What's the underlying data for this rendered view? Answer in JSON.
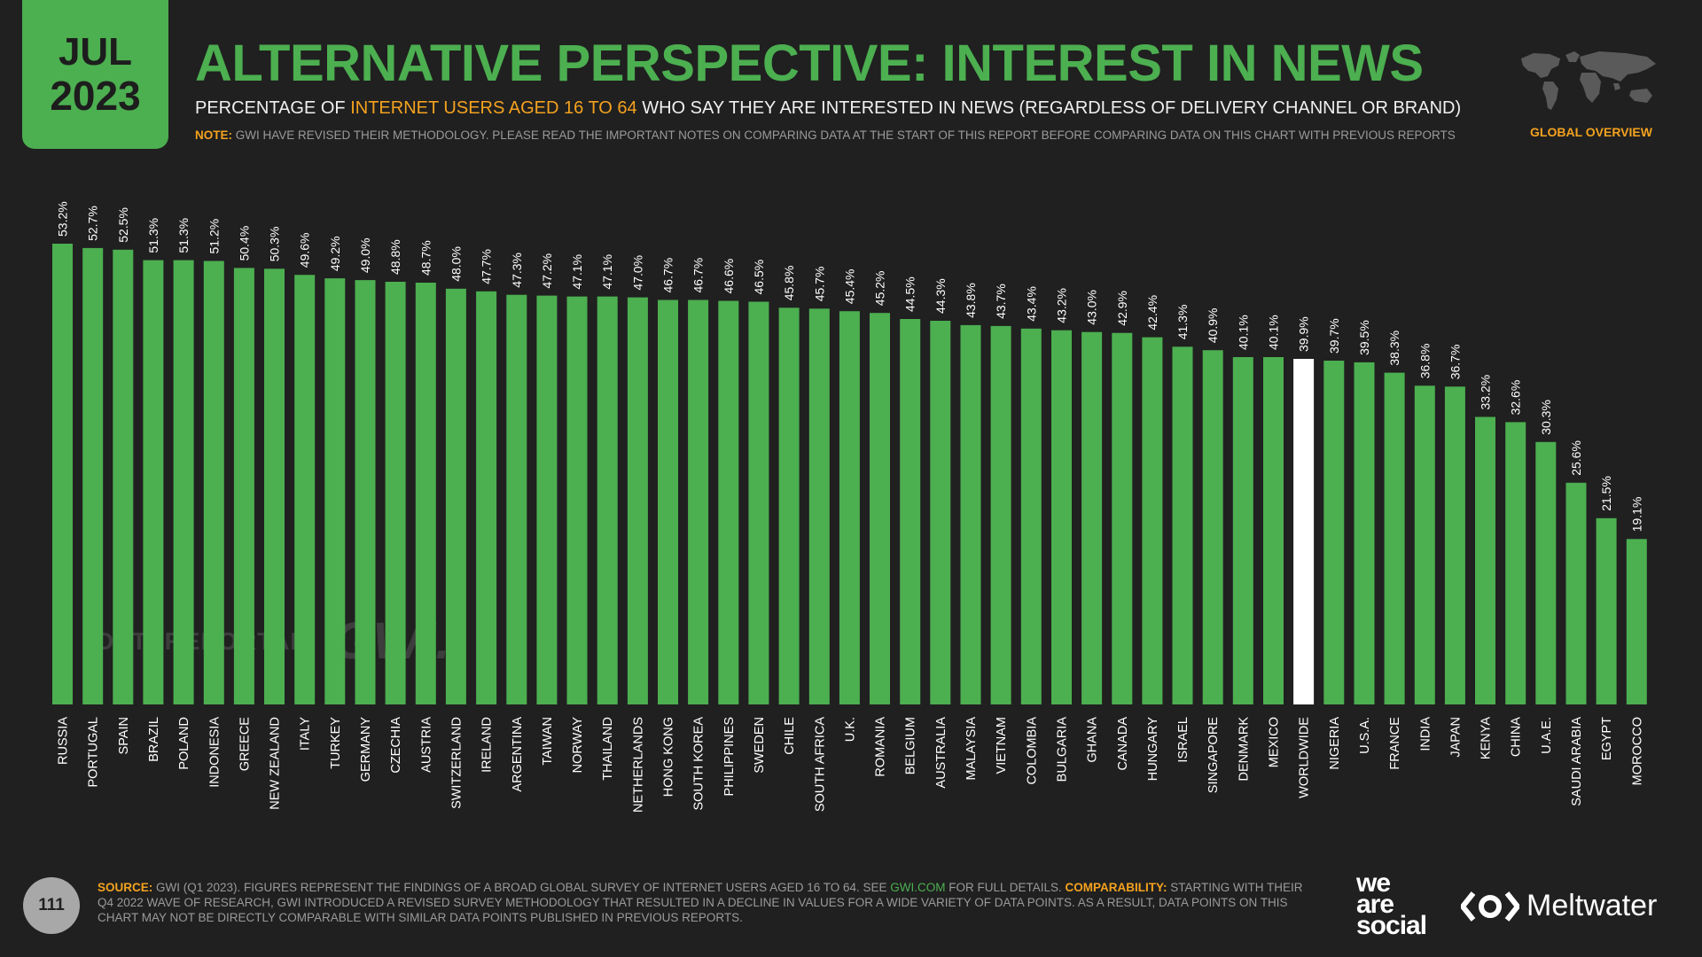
{
  "header": {
    "month": "JUL",
    "year": "2023",
    "title": "ALTERNATIVE PERSPECTIVE: INTEREST IN NEWS",
    "subtitle_pre": "PERCENTAGE OF ",
    "subtitle_highlight": "INTERNET USERS AGED 16 TO 64",
    "subtitle_post": " WHO SAY THEY ARE INTERESTED IN NEWS (REGARDLESS OF DELIVERY CHANNEL OR BRAND)",
    "note_label": "NOTE:",
    "note_text": " GWI HAVE REVISED THEIR METHODOLOGY. PLEASE READ THE IMPORTANT NOTES ON COMPARING DATA AT THE START OF THIS REPORT BEFORE COMPARING DATA ON THIS CHART WITH PREVIOUS REPORTS",
    "global_overview": "GLOBAL OVERVIEW",
    "map_icon": "world-map-icon"
  },
  "colors": {
    "background": "#202020",
    "bar": "#4caf50",
    "bar_highlight": "#ffffff",
    "accent": "#f4a21f"
  },
  "chart_data": {
    "type": "bar",
    "categories": [
      "RUSSIA",
      "PORTUGAL",
      "SPAIN",
      "BRAZIL",
      "POLAND",
      "INDONESIA",
      "GREECE",
      "NEW ZEALAND",
      "ITALY",
      "TURKEY",
      "GERMANY",
      "CZECHIA",
      "AUSTRIA",
      "SWITZERLAND",
      "IRELAND",
      "ARGENTINA",
      "TAIWAN",
      "NORWAY",
      "THAILAND",
      "NETHERLANDS",
      "HONG KONG",
      "SOUTH KOREA",
      "PHILIPPINES",
      "SWEDEN",
      "CHILE",
      "SOUTH AFRICA",
      "U.K.",
      "ROMANIA",
      "BELGIUM",
      "AUSTRALIA",
      "MALAYSIA",
      "VIETNAM",
      "COLOMBIA",
      "BULGARIA",
      "GHANA",
      "CANADA",
      "HUNGARY",
      "ISRAEL",
      "SINGAPORE",
      "DENMARK",
      "MEXICO",
      "WORLDWIDE",
      "NIGERIA",
      "U.S.A.",
      "FRANCE",
      "INDIA",
      "JAPAN",
      "KENYA",
      "CHINA",
      "U.A.E.",
      "SAUDI ARABIA",
      "EGYPT",
      "MOROCCO"
    ],
    "values": [
      53.2,
      52.7,
      52.5,
      51.3,
      51.3,
      51.2,
      50.4,
      50.3,
      49.6,
      49.2,
      49.0,
      48.8,
      48.7,
      48.0,
      47.7,
      47.3,
      47.2,
      47.1,
      47.1,
      47.0,
      46.7,
      46.7,
      46.6,
      46.5,
      45.8,
      45.7,
      45.4,
      45.2,
      44.5,
      44.3,
      43.8,
      43.7,
      43.4,
      43.2,
      43.0,
      42.9,
      42.4,
      41.3,
      40.9,
      40.1,
      40.1,
      39.9,
      39.7,
      39.5,
      38.3,
      36.8,
      36.7,
      33.2,
      32.6,
      30.3,
      25.6,
      21.5,
      19.1
    ],
    "labels": [
      "53.2%",
      "52.7%",
      "52.5%",
      "51.3%",
      "51.3%",
      "51.2%",
      "50.4%",
      "50.3%",
      "49.6%",
      "49.2%",
      "49.0%",
      "48.8%",
      "48.7%",
      "48.0%",
      "47.7%",
      "47.3%",
      "47.2%",
      "47.1%",
      "47.1%",
      "47.0%",
      "46.7%",
      "46.7%",
      "46.6%",
      "46.5%",
      "45.8%",
      "45.7%",
      "45.4%",
      "45.2%",
      "44.5%",
      "44.3%",
      "43.8%",
      "43.7%",
      "43.4%",
      "43.2%",
      "43.0%",
      "42.9%",
      "42.4%",
      "41.3%",
      "40.9%",
      "40.1%",
      "40.1%",
      "39.9%",
      "39.7%",
      "39.5%",
      "38.3%",
      "36.8%",
      "36.7%",
      "33.2%",
      "32.6%",
      "30.3%",
      "25.6%",
      "21.5%",
      "19.1%"
    ],
    "highlight_category": "WORLDWIDE",
    "ylim": [
      0,
      53.2
    ],
    "grid": false,
    "legend": "none"
  },
  "watermarks": {
    "datareportal": "DATAREPORTAL",
    "gwi": "GWI."
  },
  "footer": {
    "page_number": "111",
    "source_label": "SOURCE:",
    "source_text_1": " GWI (Q1 2023). FIGURES REPRESENT THE FINDINGS OF A BROAD GLOBAL SURVEY OF INTERNET USERS AGED 16 TO 64. SEE ",
    "source_link": "GWI.COM",
    "source_text_2": " FOR FULL DETAILS. ",
    "comparability_label": "COMPARABILITY:",
    "comparability_text": " STARTING WITH THEIR Q4 2022 WAVE OF RESEARCH, GWI INTRODUCED A REVISED SURVEY METHODOLOGY THAT RESULTED IN A DECLINE IN VALUES FOR A WIDE VARIETY OF DATA POINTS. AS A RESULT, DATA POINTS ON THIS CHART MAY NOT BE DIRECTLY COMPARABLE WITH SIMILAR DATA POINTS PUBLISHED IN PREVIOUS REPORTS.",
    "brand_we": "we",
    "brand_are": "are",
    "brand_social": "social",
    "meltwater": "Meltwater"
  }
}
